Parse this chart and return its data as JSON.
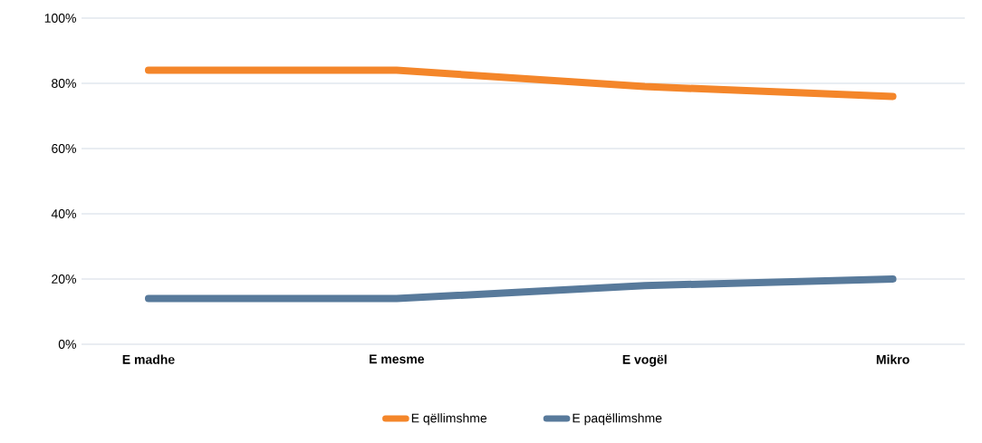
{
  "chart_data": {
    "type": "line",
    "categories": [
      "E madhe",
      "E mesme",
      "E vogël",
      "Mikro"
    ],
    "series": [
      {
        "name": "E qëllimshme",
        "color": "#f4862a",
        "values": [
          84,
          84,
          79,
          76
        ]
      },
      {
        "name": "E paqëllimshme",
        "color": "#587a9b",
        "values": [
          14,
          14,
          18,
          20
        ]
      }
    ],
    "ylim": [
      0,
      100
    ],
    "yticks": [
      {
        "value": 0,
        "label": "0%"
      },
      {
        "value": 20,
        "label": "20%"
      },
      {
        "value": 40,
        "label": "40%"
      },
      {
        "value": 60,
        "label": "60%"
      },
      {
        "value": 80,
        "label": "80%"
      },
      {
        "value": 100,
        "label": "100%"
      }
    ],
    "grid": "y",
    "legend": "bottom",
    "marker": "none",
    "line_style": "solid"
  }
}
